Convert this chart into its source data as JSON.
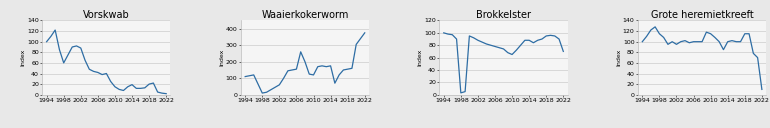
{
  "charts": [
    {
      "title": "Vorskwab",
      "ylabel": "Index",
      "years": [
        1994,
        1995,
        1996,
        1997,
        1998,
        1999,
        2000,
        2001,
        2002,
        2003,
        2004,
        2005,
        2006,
        2007,
        2008,
        2009,
        2010,
        2011,
        2012,
        2013,
        2014,
        2015,
        2016,
        2017,
        2018,
        2019,
        2020,
        2021,
        2022
      ],
      "values": [
        100,
        110,
        122,
        85,
        60,
        75,
        90,
        92,
        88,
        65,
        48,
        44,
        42,
        38,
        40,
        25,
        15,
        10,
        8,
        15,
        19,
        12,
        12,
        13,
        20,
        22,
        5,
        3,
        2
      ],
      "ylim": [
        0,
        140
      ],
      "yticks": [
        0,
        20,
        40,
        60,
        80,
        100,
        120,
        140
      ],
      "xticks": [
        1994,
        1998,
        2002,
        2006,
        2010,
        2014,
        2018,
        2022
      ]
    },
    {
      "title": "Waaierkokerworm",
      "ylabel": "Index",
      "years": [
        1994,
        1995,
        1996,
        1997,
        1998,
        1999,
        2000,
        2001,
        2002,
        2003,
        2004,
        2005,
        2006,
        2007,
        2008,
        2009,
        2010,
        2011,
        2012,
        2013,
        2014,
        2015,
        2016,
        2017,
        2018,
        2019,
        2020,
        2021,
        2022
      ],
      "values": [
        110,
        115,
        120,
        65,
        10,
        15,
        30,
        45,
        60,
        100,
        145,
        150,
        155,
        260,
        200,
        125,
        120,
        170,
        175,
        170,
        175,
        70,
        120,
        150,
        155,
        160,
        305,
        340,
        375
      ],
      "ylim": [
        0,
        450
      ],
      "yticks": [
        0,
        100,
        200,
        300,
        400
      ],
      "xticks": [
        1994,
        1998,
        2002,
        2006,
        2010,
        2014,
        2018,
        2022
      ]
    },
    {
      "title": "Brokkelster",
      "ylabel": "Index",
      "years": [
        1994,
        1995,
        1996,
        1997,
        1998,
        1999,
        2000,
        2001,
        2002,
        2003,
        2004,
        2005,
        2006,
        2007,
        2008,
        2009,
        2010,
        2011,
        2012,
        2013,
        2014,
        2015,
        2016,
        2017,
        2018,
        2019,
        2020,
        2021,
        2022
      ],
      "values": [
        100,
        98,
        97,
        90,
        3,
        5,
        95,
        92,
        88,
        85,
        82,
        80,
        78,
        76,
        74,
        68,
        65,
        72,
        80,
        88,
        88,
        84,
        88,
        90,
        95,
        96,
        95,
        90,
        70
      ],
      "ylim": [
        0,
        120
      ],
      "yticks": [
        0,
        20,
        40,
        60,
        80,
        100,
        120
      ],
      "xticks": [
        1994,
        1998,
        2002,
        2006,
        2010,
        2014,
        2018,
        2022
      ]
    },
    {
      "title": "Grote heremietkreeft",
      "ylabel": "Index",
      "years": [
        1994,
        1995,
        1996,
        1997,
        1998,
        1999,
        2000,
        2001,
        2002,
        2003,
        2004,
        2005,
        2006,
        2007,
        2008,
        2009,
        2010,
        2011,
        2012,
        2013,
        2014,
        2015,
        2016,
        2017,
        2018,
        2019,
        2020,
        2021,
        2022
      ],
      "values": [
        100,
        110,
        122,
        128,
        115,
        108,
        95,
        100,
        95,
        100,
        102,
        98,
        100,
        100,
        100,
        118,
        115,
        108,
        100,
        85,
        100,
        102,
        100,
        100,
        115,
        115,
        78,
        70,
        10
      ],
      "ylim": [
        0,
        140
      ],
      "yticks": [
        0,
        20,
        40,
        60,
        80,
        100,
        120,
        140
      ],
      "xticks": [
        1994,
        1998,
        2002,
        2006,
        2010,
        2014,
        2018,
        2022
      ]
    }
  ],
  "line_color": "#2e6da4",
  "line_width": 0.9,
  "bg_color": "#e8e8e8",
  "plot_bg": "#f5f5f5",
  "title_fontsize": 7,
  "label_fontsize": 4.5,
  "tick_fontsize": 4.5
}
